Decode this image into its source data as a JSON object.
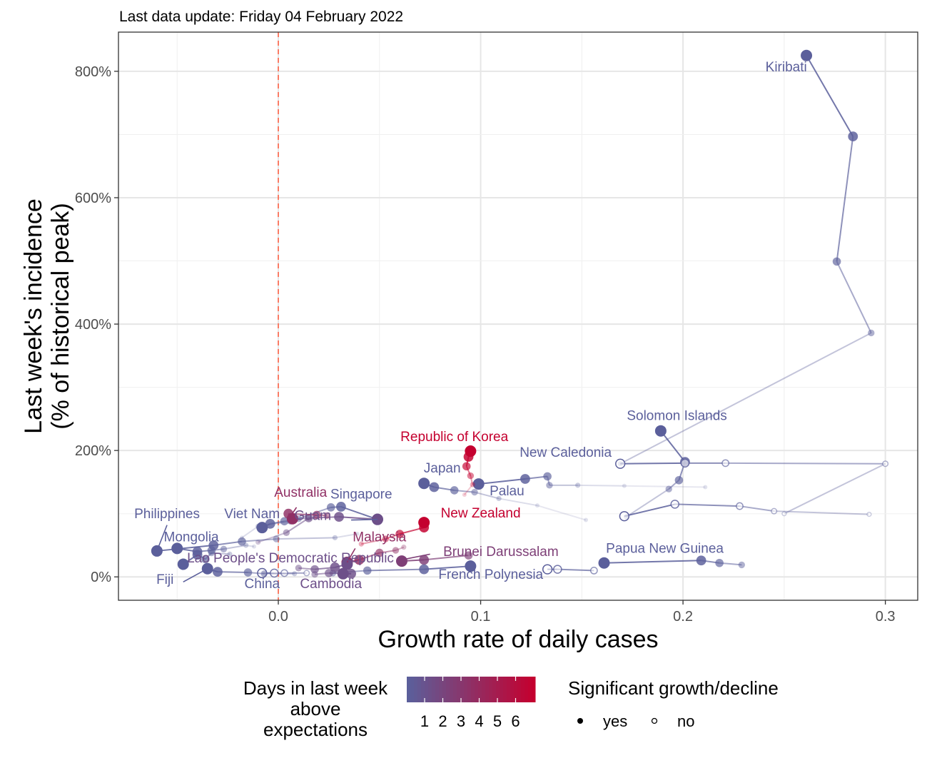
{
  "subtitle": "Last data update: Friday 04 February 2022",
  "chart_data": {
    "type": "scatter",
    "xlabel": "Growth rate of daily cases",
    "ylabel": "Last week's incidence\n(% of historical peak)",
    "xlim": [
      -0.079,
      0.316
    ],
    "ylim": [
      -37,
      862
    ],
    "x_ticks": [
      {
        "value": 0.0,
        "label": "0.0"
      },
      {
        "value": 0.1,
        "label": "0.1"
      },
      {
        "value": 0.2,
        "label": "0.2"
      },
      {
        "value": 0.3,
        "label": "0.3"
      }
    ],
    "y_ticks": [
      {
        "value": 0,
        "label": "0%"
      },
      {
        "value": 200,
        "label": "200%"
      },
      {
        "value": 400,
        "label": "400%"
      },
      {
        "value": 600,
        "label": "600%"
      },
      {
        "value": 800,
        "label": "800%"
      }
    ],
    "zero_line": {
      "x": 0,
      "color": "#ff6347"
    },
    "color_scale": {
      "low": "#5b5f9b",
      "high": "#c4002f"
    },
    "legend": {
      "color_title": "Days in last week\nabove\nexpectations",
      "color_labels": [
        "1",
        "2",
        "3",
        "4",
        "5",
        "6"
      ],
      "shape_title": "Significant growth/decline",
      "shape_labels": [
        "yes",
        "no"
      ],
      "position": "bottom"
    },
    "series": [
      {
        "name": "Kiribati",
        "days": 0,
        "path": [
          [
            0.261,
            825,
            1
          ],
          [
            0.284,
            697,
            1
          ],
          [
            0.276,
            499,
            1
          ],
          [
            0.293,
            386,
            1
          ],
          [
            0.169,
            179,
            1
          ]
        ]
      },
      {
        "name": "Solomon Islands",
        "days": 0,
        "path": [
          [
            0.189,
            231,
            1
          ],
          [
            0.201,
            182,
            1
          ],
          [
            0.198,
            153,
            1
          ],
          [
            0.193,
            139,
            1
          ],
          [
            0.172,
            95,
            1
          ]
        ]
      },
      {
        "name": "New Caledonia",
        "days": 0,
        "path": [
          [
            0.169,
            179,
            0
          ],
          [
            0.201,
            180,
            0
          ],
          [
            0.221,
            180,
            0
          ],
          [
            0.3,
            179,
            0
          ],
          [
            0.25,
            100,
            0
          ]
        ]
      },
      {
        "name": "Japan",
        "days": 0,
        "path": [
          [
            0.072,
            148,
            1
          ],
          [
            0.077,
            142,
            1
          ],
          [
            0.087,
            137,
            1
          ],
          [
            0.097,
            134,
            1
          ],
          [
            0.109,
            124,
            1
          ],
          [
            0.128,
            113,
            1
          ],
          [
            0.152,
            90,
            1
          ]
        ]
      },
      {
        "name": "Palau",
        "days": 0,
        "path": [
          [
            0.099,
            147,
            1
          ],
          [
            0.122,
            155,
            1
          ],
          [
            0.133,
            159,
            1
          ],
          [
            0.134,
            145,
            1
          ],
          [
            0.148,
            145,
            1
          ],
          [
            0.171,
            144,
            1
          ],
          [
            0.211,
            142,
            1
          ]
        ]
      },
      {
        "name": "Republic of Korea",
        "days": 6,
        "path": [
          [
            0.095,
            199,
            1
          ],
          [
            0.094,
            190,
            1
          ],
          [
            0.093,
            175,
            1
          ],
          [
            0.095,
            160,
            1
          ],
          [
            0.096,
            146,
            1
          ],
          [
            0.092,
            130,
            1
          ]
        ]
      },
      {
        "name": "New Zealand",
        "days": 6,
        "path": [
          [
            0.072,
            86,
            1
          ],
          [
            0.072,
            78,
            1
          ],
          [
            0.06,
            68,
            1
          ],
          [
            0.053,
            60,
            1
          ],
          [
            0.041,
            52,
            1
          ]
        ]
      },
      {
        "name": "Singapore",
        "days": 0,
        "path": [
          [
            0.049,
            91,
            1
          ],
          [
            0.031,
            111,
            1
          ],
          [
            0.026,
            110,
            1
          ],
          [
            0.006,
            88,
            1
          ],
          [
            -0.01,
            80,
            1
          ],
          [
            -0.018,
            62,
            1
          ]
        ]
      },
      {
        "name": "Viet Nam",
        "days": 0,
        "path": [
          [
            -0.008,
            78,
            1
          ],
          [
            -0.004,
            84,
            1
          ],
          [
            0.003,
            88,
            1
          ],
          [
            0.01,
            92,
            1
          ],
          [
            0.015,
            93,
            1
          ]
        ]
      },
      {
        "name": "Guam",
        "days": 1,
        "path": [
          [
            0.049,
            91,
            1
          ],
          [
            0.03,
            95,
            1
          ],
          [
            0.015,
            93,
            1
          ],
          [
            0.004,
            70,
            1
          ],
          [
            -0.01,
            55,
            1
          ]
        ]
      },
      {
        "name": "Australia",
        "days": 3,
        "path": [
          [
            0.007,
            92,
            1
          ],
          [
            0.005,
            100,
            1
          ],
          [
            0.019,
            98,
            1
          ],
          [
            0.024,
            97,
            1
          ]
        ]
      },
      {
        "name": "Philippines",
        "days": 0,
        "path": [
          [
            -0.06,
            41,
            1
          ],
          [
            -0.032,
            50,
            1
          ],
          [
            -0.018,
            56,
            1
          ],
          [
            -0.001,
            60,
            1
          ],
          [
            0.028,
            62,
            1
          ],
          [
            0.039,
            68,
            1
          ]
        ]
      },
      {
        "name": "Mongolia",
        "days": 0,
        "path": [
          [
            -0.05,
            45,
            1
          ],
          [
            -0.04,
            40,
            1
          ],
          [
            -0.033,
            42,
            1
          ],
          [
            -0.027,
            44,
            1
          ],
          [
            -0.016,
            50,
            1
          ],
          [
            -0.012,
            48,
            1
          ]
        ]
      },
      {
        "name": "Malaysia",
        "days": 3,
        "path": [
          [
            0.034,
            23,
            1
          ],
          [
            0.04,
            27,
            1
          ],
          [
            0.05,
            38,
            1
          ],
          [
            0.058,
            42,
            1
          ],
          [
            0.062,
            47,
            1
          ]
        ]
      },
      {
        "name": "Brunei Darussalam",
        "days": 2,
        "path": [
          [
            0.061,
            25,
            1
          ],
          [
            0.072,
            27,
            1
          ],
          [
            0.094,
            34,
            1
          ]
        ]
      },
      {
        "name": "Papua New Guinea",
        "days": 0,
        "path": [
          [
            0.161,
            22,
            1
          ],
          [
            0.209,
            26,
            1
          ],
          [
            0.218,
            22,
            1
          ],
          [
            0.229,
            19,
            1
          ]
        ]
      },
      {
        "name": "French Polynesia",
        "days": 0,
        "path": [
          [
            0.095,
            17,
            1
          ],
          [
            0.072,
            12,
            1
          ],
          [
            0.044,
            10,
            1
          ],
          [
            0.027,
            6,
            1
          ]
        ]
      },
      {
        "name": "Lao People's Democratic Republic",
        "days": 1,
        "path": [
          [
            0.034,
            20,
            1
          ],
          [
            0.028,
            15,
            1
          ],
          [
            0.018,
            12,
            1
          ],
          [
            0.01,
            14,
            1
          ]
        ]
      },
      {
        "name": "Cambodia",
        "days": 1,
        "path": [
          [
            0.032,
            5,
            1
          ],
          [
            0.036,
            5,
            1
          ],
          [
            0.025,
            6,
            1
          ],
          [
            0.018,
            4,
            1
          ]
        ]
      },
      {
        "name": "China",
        "days": 0,
        "path": [
          [
            -0.008,
            6,
            0
          ],
          [
            -0.002,
            6,
            0
          ],
          [
            0.003,
            6,
            0
          ],
          [
            0.014,
            6,
            0
          ]
        ]
      },
      {
        "name": "Fiji",
        "days": 0,
        "path": [
          [
            -0.035,
            13,
            1
          ],
          [
            -0.03,
            8,
            1
          ],
          [
            -0.015,
            7,
            1
          ],
          [
            -0.007,
            5,
            1
          ],
          [
            0.008,
            5,
            1
          ]
        ]
      },
      {
        "name": "",
        "days": 0,
        "path": [
          [
            0.133,
            12,
            0
          ],
          [
            0.138,
            12,
            0
          ],
          [
            0.156,
            10,
            0
          ]
        ]
      },
      {
        "name": "",
        "days": 0,
        "path": [
          [
            -0.047,
            20,
            1
          ],
          [
            -0.04,
            35,
            1
          ],
          [
            -0.036,
            28,
            1
          ],
          [
            -0.033,
            38,
            1
          ],
          [
            -0.024,
            36,
            1
          ]
        ]
      },
      {
        "name": "",
        "days": 0,
        "path": [
          [
            0.171,
            96,
            0
          ],
          [
            0.196,
            115,
            0
          ],
          [
            0.228,
            112,
            0
          ],
          [
            0.245,
            104,
            0
          ],
          [
            0.292,
            99,
            0
          ]
        ]
      }
    ],
    "labels": [
      {
        "text": "Kiribati",
        "days": 0,
        "x": 0.251,
        "y": 800,
        "anchor": "middle"
      },
      {
        "text": "Solomon Islands",
        "days": 0,
        "x": 0.197,
        "y": 248,
        "anchor": "middle"
      },
      {
        "text": "New Caledonia",
        "days": 0,
        "x": 0.142,
        "y": 190,
        "anchor": "middle"
      },
      {
        "text": "Republic of Korea",
        "days": 6,
        "x": 0.087,
        "y": 215,
        "anchor": "middle"
      },
      {
        "text": "Japan",
        "days": 0,
        "x": 0.081,
        "y": 165,
        "anchor": "middle"
      },
      {
        "text": "Palau",
        "days": 0,
        "x": 0.113,
        "y": 129,
        "anchor": "middle"
      },
      {
        "text": "Singapore",
        "days": 0,
        "x": 0.041,
        "y": 124,
        "anchor": "middle"
      },
      {
        "text": "Australia",
        "days": 3,
        "x": 0.011,
        "y": 127,
        "anchor": "middle"
      },
      {
        "text": "New Zealand",
        "days": 6,
        "x": 0.1,
        "y": 94,
        "anchor": "middle"
      },
      {
        "text": "Philippines",
        "days": 0,
        "x": -0.055,
        "y": 93,
        "anchor": "middle"
      },
      {
        "text": "Viet Nam",
        "days": 0,
        "x": -0.013,
        "y": 93,
        "anchor": "middle"
      },
      {
        "text": "Guam",
        "days": 1,
        "x": 0.017,
        "y": 90,
        "anchor": "middle"
      },
      {
        "text": "Mongolia",
        "days": 0,
        "x": -0.043,
        "y": 56,
        "anchor": "middle"
      },
      {
        "text": "Malaysia",
        "days": 3,
        "x": 0.05,
        "y": 56,
        "anchor": "middle"
      },
      {
        "text": "Brunei Darussalam",
        "days": 2,
        "x": 0.11,
        "y": 33,
        "anchor": "middle"
      },
      {
        "text": "Papua New Guinea",
        "days": 0,
        "x": 0.191,
        "y": 38,
        "anchor": "middle"
      },
      {
        "text": "Lao People's Democratic Republic",
        "days": 1,
        "x": 0.006,
        "y": 23,
        "anchor": "middle"
      },
      {
        "text": "French Polynesia",
        "days": 0,
        "x": 0.105,
        "y": -3,
        "anchor": "middle"
      },
      {
        "text": "Fiji",
        "days": 0,
        "x": -0.056,
        "y": -11,
        "anchor": "middle"
      },
      {
        "text": "China",
        "days": 0,
        "x": -0.008,
        "y": -18,
        "anchor": "middle"
      },
      {
        "text": "Cambodia",
        "days": 1,
        "x": 0.026,
        "y": -18,
        "anchor": "middle"
      }
    ],
    "leaders": [
      {
        "from": [
          -0.055,
          82
        ],
        "to": [
          -0.06,
          41
        ],
        "days": 0
      },
      {
        "from": [
          -0.047,
          -8
        ],
        "to": [
          -0.035,
          13
        ],
        "days": 0
      },
      {
        "from": [
          0.009,
          110
        ],
        "to": [
          0.006,
          96
        ],
        "days": 3
      },
      {
        "from": [
          0.036,
          90
        ],
        "to": [
          0.049,
          91
        ],
        "days": 0
      },
      {
        "from": [
          0.038,
          45
        ],
        "to": [
          0.034,
          23
        ],
        "days": 3
      },
      {
        "from": [
          0.075,
          36
        ],
        "to": [
          0.061,
          27
        ],
        "days": 2
      }
    ]
  }
}
